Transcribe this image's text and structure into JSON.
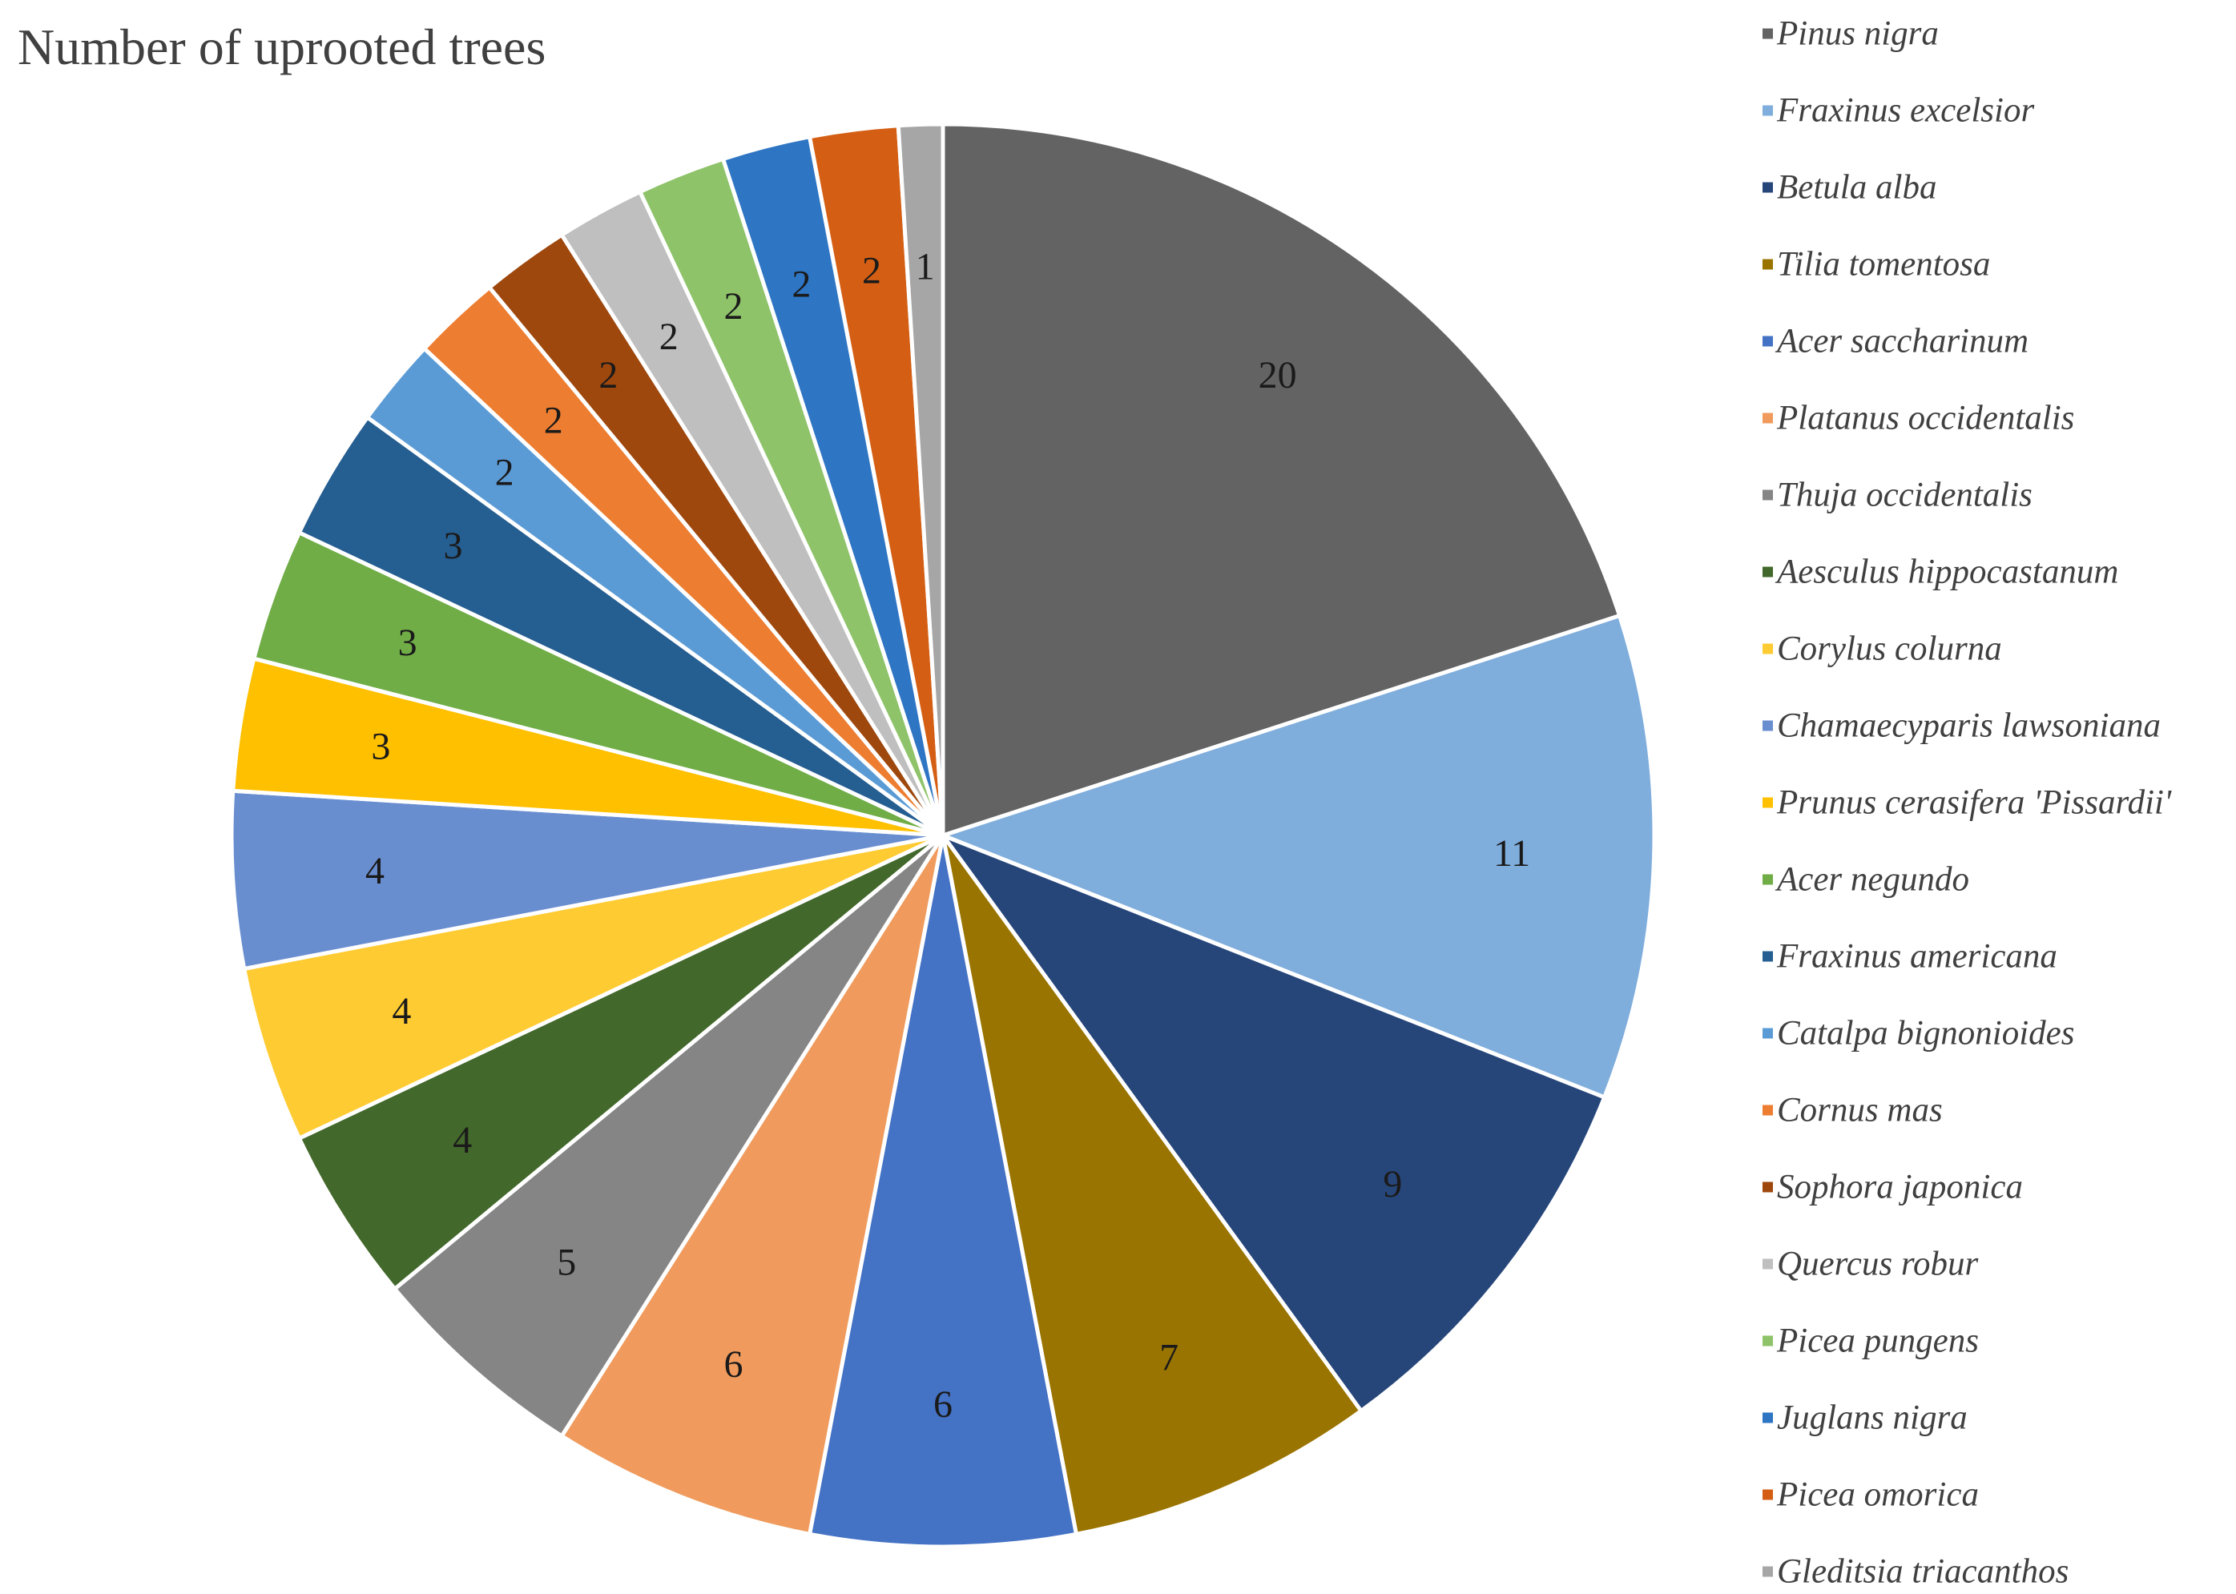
{
  "chart_data": {
    "type": "pie",
    "title": "Number of uprooted trees",
    "legend_position": "right",
    "start_angle_deg": 0,
    "direction": "clockwise",
    "slices": [
      {
        "label": "Pinus nigra",
        "value": 20,
        "color": "#636363"
      },
      {
        "label": "Fraxinus excelsior",
        "value": 11,
        "color": "#7faddc"
      },
      {
        "label": "Betula alba",
        "value": 9,
        "color": "#26467a"
      },
      {
        "label": "Tilia tomentosa",
        "value": 7,
        "color": "#9a7400"
      },
      {
        "label": "Acer saccharinum",
        "value": 6,
        "color": "#4472c4"
      },
      {
        "label": "Platanus occidentalis",
        "value": 6,
        "color": "#f09b5d"
      },
      {
        "label": "Thuja occidentalis",
        "value": 5,
        "color": "#858585"
      },
      {
        "label": "Aesculus hippocastanum",
        "value": 4,
        "color": "#43682b"
      },
      {
        "label": "Corylus colurna",
        "value": 4,
        "color": "#ffcb33"
      },
      {
        "label": "Chamaecyparis lawsoniana",
        "value": 4,
        "color": "#698ed0"
      },
      {
        "label": "Prunus cerasifera 'Pissardii'",
        "value": 3,
        "color": "#ffc000"
      },
      {
        "label": "Acer negundo",
        "value": 3,
        "color": "#70ad47"
      },
      {
        "label": "Fraxinus americana",
        "value": 3,
        "color": "#255e91"
      },
      {
        "label": "Catalpa bignonioides",
        "value": 2,
        "color": "#5b9bd5"
      },
      {
        "label": "Cornus mas",
        "value": 2,
        "color": "#ed7d31"
      },
      {
        "label": "Sophora japonica",
        "value": 2,
        "color": "#9e480e"
      },
      {
        "label": "Quercus robur",
        "value": 2,
        "color": "#bfbfbf"
      },
      {
        "label": "Picea pungens",
        "value": 2,
        "color": "#8ec36a"
      },
      {
        "label": "Juglans nigra",
        "value": 2,
        "color": "#2e75c4"
      },
      {
        "label": "Picea omorica",
        "value": 2,
        "color": "#d45f14"
      },
      {
        "label": "Gleditsia triacanthos",
        "value": 1,
        "color": "#a6a6a6"
      }
    ]
  }
}
